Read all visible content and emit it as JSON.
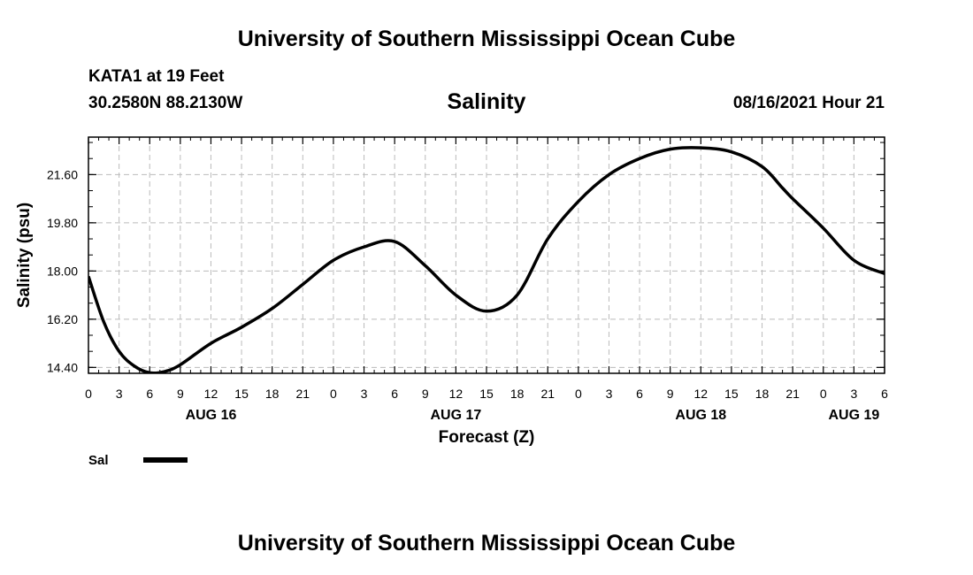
{
  "page": {
    "top_title": "University of Southern Mississippi Ocean Cube",
    "bottom_title": "University of Southern Mississippi Ocean Cube",
    "station": "KATA1 at 19 Feet",
    "coords": "30.2580N  88.2130W",
    "datetime": "08/16/2021 Hour 21"
  },
  "chart_data": {
    "type": "line",
    "title": "Salinity",
    "xlabel": "Forecast (Z)",
    "ylabel": "Salinity (psu)",
    "ylim": [
      14.18,
      23.0
    ],
    "yticks": [
      14.4,
      16.2,
      18.0,
      19.8,
      21.6
    ],
    "ytick_labels": [
      "14.40",
      "16.20",
      "18.00",
      "19.80",
      "21.60"
    ],
    "xlim": [
      0,
      78
    ],
    "xticks": [
      0,
      3,
      6,
      9,
      12,
      15,
      18,
      21,
      24,
      27,
      30,
      33,
      36,
      39,
      42,
      45,
      48,
      51,
      54,
      57,
      60,
      63,
      66,
      69,
      72,
      75,
      78
    ],
    "xtick_labels": [
      "0",
      "3",
      "6",
      "9",
      "12",
      "15",
      "18",
      "21",
      "0",
      "3",
      "6",
      "9",
      "12",
      "15",
      "18",
      "21",
      "0",
      "3",
      "6",
      "9",
      "12",
      "15",
      "18",
      "21",
      "0",
      "3",
      "6"
    ],
    "day_labels": [
      {
        "x": 12,
        "label": "AUG 16"
      },
      {
        "x": 36,
        "label": "AUG 17"
      },
      {
        "x": 60,
        "label": "AUG 18"
      },
      {
        "x": 75,
        "label": "AUG 19"
      }
    ],
    "grid": true,
    "series": [
      {
        "name": "Sal",
        "x": [
          0,
          1.5,
          3,
          4.5,
          6,
          7.5,
          9,
          12,
          15,
          18,
          21,
          24,
          27,
          30,
          33,
          36,
          39,
          42,
          45,
          48,
          51,
          54,
          57,
          60,
          63,
          66,
          68,
          69,
          72,
          75,
          78
        ],
        "values": [
          17.8,
          16.1,
          15.0,
          14.45,
          14.2,
          14.25,
          14.5,
          15.3,
          15.9,
          16.6,
          17.5,
          18.4,
          18.9,
          19.1,
          18.2,
          17.1,
          16.5,
          17.1,
          19.2,
          20.6,
          21.6,
          22.2,
          22.55,
          22.6,
          22.45,
          21.9,
          21.1,
          20.7,
          19.6,
          18.4,
          17.9
        ],
        "legend_label": "Sal"
      }
    ],
    "legend": {
      "position": "bottom-left",
      "label": "Sal"
    }
  }
}
